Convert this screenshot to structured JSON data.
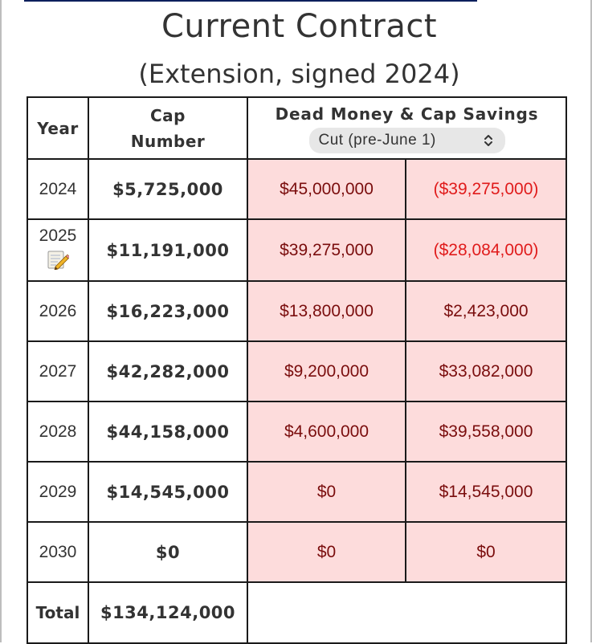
{
  "page": {
    "title": "Current Contract",
    "subtitle": "(Extension, signed 2024)"
  },
  "table": {
    "headers": {
      "year": "Year",
      "cap_line1": "Cap",
      "cap_line2": "Number",
      "dead_money": "Dead Money & Cap Savings"
    },
    "scenario_select": {
      "value": "Cut (pre-June 1)",
      "icon": "chevron-updown-icon"
    },
    "rows": [
      {
        "year": "2024",
        "cap": "$5,725,000",
        "dead": "$45,000,000",
        "savings": "($39,275,000)",
        "savings_negative": true,
        "note_icon": false
      },
      {
        "year": "2025",
        "cap": "$11,191,000",
        "dead": "$39,275,000",
        "savings": "($28,084,000)",
        "savings_negative": true,
        "note_icon": true
      },
      {
        "year": "2026",
        "cap": "$16,223,000",
        "dead": "$13,800,000",
        "savings": "$2,423,000",
        "savings_negative": false,
        "note_icon": false
      },
      {
        "year": "2027",
        "cap": "$42,282,000",
        "dead": "$9,200,000",
        "savings": "$33,082,000",
        "savings_negative": false,
        "note_icon": false
      },
      {
        "year": "2028",
        "cap": "$44,158,000",
        "dead": "$4,600,000",
        "savings": "$39,558,000",
        "savings_negative": false,
        "note_icon": false
      },
      {
        "year": "2029",
        "cap": "$14,545,000",
        "dead": "$0",
        "savings": "$14,545,000",
        "savings_negative": false,
        "note_icon": false
      },
      {
        "year": "2030",
        "cap": "$0",
        "dead": "$0",
        "savings": "$0",
        "savings_negative": false,
        "note_icon": false
      }
    ],
    "total": {
      "label": "Total",
      "cap": "$134,124,000"
    }
  },
  "colors": {
    "dead_cell_bg": "#fddcdc",
    "dead_cell_text": "#7a0d0d",
    "negative_text": "#e01b1b",
    "top_bar": "#0b1f5c"
  }
}
